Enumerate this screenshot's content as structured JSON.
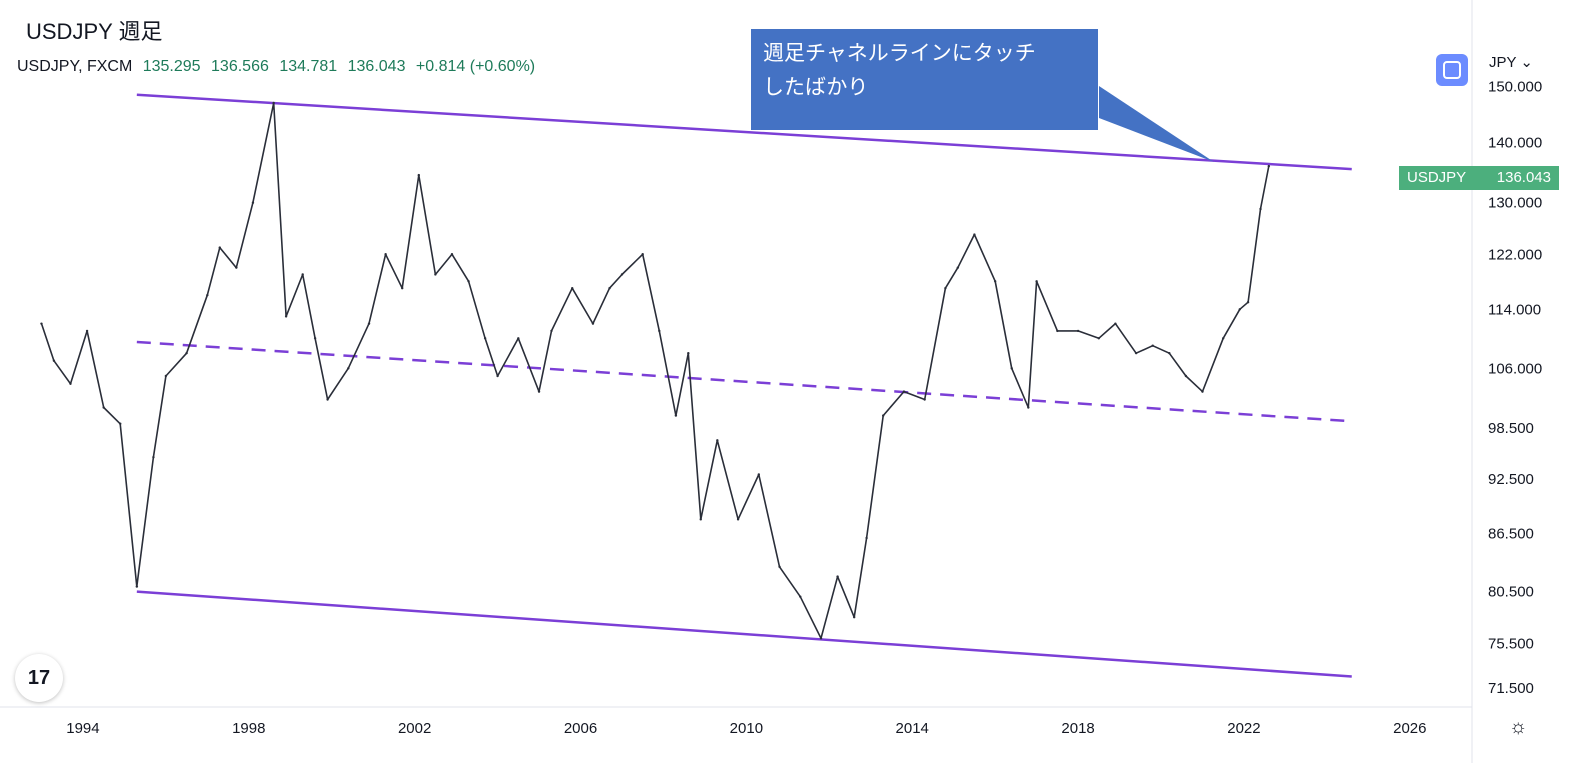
{
  "header": {
    "title": "USDJPY 週足",
    "symbol_line": "USDJPY, FXCM",
    "open": "135.295",
    "high": "136.566",
    "low": "134.781",
    "close": "136.043",
    "change": "+0.814 (+0.60%)"
  },
  "callout": {
    "line1": "週足チャネルラインにタッチ",
    "line2": "したばかり"
  },
  "currency_label": "JPY",
  "price_tag": {
    "symbol": "USDJPY",
    "value": "136.043"
  },
  "logo_text": "17",
  "colors": {
    "channel": "#7b3fd6",
    "price_line": "#2a2e39",
    "callout": "#4472c4",
    "price_tag": "#4caf7d",
    "up_text": "#1e7b5a"
  },
  "chart_data": {
    "type": "line",
    "title": "USDJPY 週足",
    "x_ticks": [
      "1994",
      "1998",
      "2002",
      "2006",
      "2010",
      "2014",
      "2018",
      "2022",
      "2026"
    ],
    "y_ticks": [
      "150.000",
      "140.000",
      "130.000",
      "122.000",
      "114.000",
      "106.000",
      "98.500",
      "92.500",
      "86.500",
      "80.500",
      "75.500",
      "71.500"
    ],
    "series": [
      {
        "x": [
          1993.0,
          1993.3,
          1993.7,
          1994.1,
          1994.5,
          1994.9,
          1995.3,
          1995.7,
          1996.0,
          1996.5,
          1997.0,
          1997.3,
          1997.7,
          1998.1,
          1998.6,
          1998.9,
          1999.3,
          1999.6,
          1999.9,
          2000.4,
          2000.9,
          2001.3,
          2001.7,
          2002.1,
          2002.5,
          2002.9,
          2003.3,
          2003.7,
          2004.0,
          2004.5,
          2005.0,
          2005.3,
          2005.8,
          2006.3,
          2006.7,
          2007.0,
          2007.5,
          2007.9,
          2008.3,
          2008.6,
          2008.9,
          2009.3,
          2009.8,
          2010.3,
          2010.8,
          2011.3,
          2011.8,
          2012.2,
          2012.6,
          2012.9,
          2013.3,
          2013.8,
          2014.3,
          2014.8,
          2015.1,
          2015.5,
          2016.0,
          2016.4,
          2016.8,
          2017.0,
          2017.5,
          2018.0,
          2018.5,
          2018.9,
          2019.4,
          2019.8,
          2020.2,
          2020.6,
          2021.0,
          2021.5,
          2021.9,
          2022.1,
          2022.4,
          2022.6
        ],
        "y": [
          112.0,
          107.0,
          104.0,
          111.0,
          101.0,
          99.0,
          81.0,
          95.0,
          105.0,
          108.0,
          116.0,
          123.0,
          120.0,
          130.0,
          147.0,
          113.0,
          119.0,
          110.0,
          102.0,
          106.0,
          112.0,
          122.0,
          117.0,
          134.5,
          119.0,
          122.0,
          118.0,
          110.0,
          105.0,
          110.0,
          103.0,
          111.0,
          117.0,
          112.0,
          117.0,
          119.0,
          122.0,
          111.0,
          100.0,
          108.0,
          88.0,
          97.0,
          88.0,
          93.0,
          83.0,
          80.0,
          76.0,
          82.0,
          78.0,
          86.0,
          100.0,
          103.0,
          102.0,
          117.0,
          120.0,
          125.0,
          118.0,
          106.0,
          101.0,
          118.0,
          111.0,
          111.0,
          110.0,
          112.0,
          108.0,
          109.0,
          108.0,
          105.0,
          103.0,
          110.0,
          114.0,
          115.0,
          129.0,
          136.0
        ]
      }
    ],
    "channel": {
      "upper": [
        [
          1995.3,
          148.5
        ],
        [
          2024.6,
          135.5
        ]
      ],
      "lower": [
        [
          1995.3,
          80.5
        ],
        [
          2024.6,
          72.5
        ]
      ],
      "mid_dashed": [
        [
          1995.3,
          109.5
        ],
        [
          2024.6,
          99.3
        ]
      ]
    },
    "xlim": [
      1992.0,
      2027.5
    ],
    "y_scale": "log",
    "grid": false,
    "legend": "none"
  }
}
